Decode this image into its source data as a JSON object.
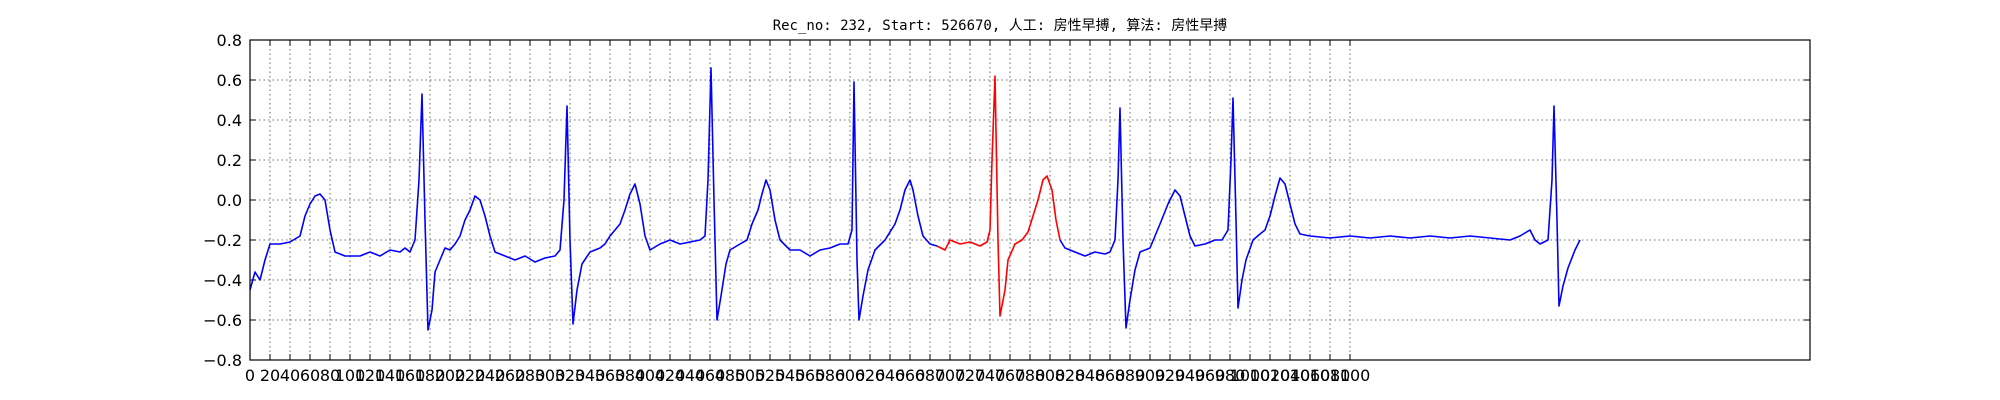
{
  "chart_data": {
    "type": "line",
    "title": "Rec_no: 232, Start: 526670, 人工: 房性早搏, 算法: 房性早搏",
    "xlabel": "",
    "ylabel": "",
    "xlim": [
      0,
      1560
    ],
    "ylim": [
      -0.8,
      0.8
    ],
    "grid": true,
    "yticks": [
      -0.8,
      -0.6,
      -0.4,
      -0.2,
      0.0,
      0.2,
      0.4,
      0.6,
      0.8
    ],
    "ytick_labels": [
      "−0.8",
      "−0.6",
      "−0.4",
      "−0.2",
      "0.0",
      "0.2",
      "0.4",
      "0.6",
      "0.8"
    ],
    "xtick_step": 20,
    "xtick_max": 1100,
    "series": [
      {
        "color": "#0000ff",
        "points": [
          [
            0,
            -0.45
          ],
          [
            5,
            -0.36
          ],
          [
            10,
            -0.4
          ],
          [
            15,
            -0.3
          ],
          [
            20,
            -0.22
          ],
          [
            30,
            -0.22
          ],
          [
            40,
            -0.21
          ],
          [
            50,
            -0.18
          ],
          [
            55,
            -0.08
          ],
          [
            60,
            -0.02
          ],
          [
            65,
            0.02
          ],
          [
            70,
            0.03
          ],
          [
            75,
            0.0
          ],
          [
            80,
            -0.15
          ],
          [
            85,
            -0.26
          ],
          [
            95,
            -0.28
          ],
          [
            110,
            -0.28
          ],
          [
            120,
            -0.26
          ],
          [
            130,
            -0.28
          ],
          [
            140,
            -0.25
          ],
          [
            150,
            -0.26
          ],
          [
            155,
            -0.24
          ],
          [
            160,
            -0.26
          ],
          [
            165,
            -0.2
          ],
          [
            169,
            0.1
          ],
          [
            172,
            0.53
          ],
          [
            175,
            -0.1
          ],
          [
            178,
            -0.65
          ],
          [
            182,
            -0.55
          ],
          [
            185,
            -0.36
          ],
          [
            190,
            -0.3
          ],
          [
            195,
            -0.24
          ],
          [
            200,
            -0.25
          ],
          [
            205,
            -0.22
          ],
          [
            210,
            -0.18
          ],
          [
            215,
            -0.1
          ],
          [
            220,
            -0.05
          ],
          [
            225,
            0.02
          ],
          [
            230,
            0.0
          ],
          [
            235,
            -0.08
          ],
          [
            240,
            -0.18
          ],
          [
            245,
            -0.26
          ],
          [
            255,
            -0.28
          ],
          [
            265,
            -0.3
          ],
          [
            275,
            -0.28
          ],
          [
            285,
            -0.31
          ],
          [
            295,
            -0.29
          ],
          [
            305,
            -0.28
          ],
          [
            310,
            -0.25
          ],
          [
            314,
            0.0
          ],
          [
            317,
            0.47
          ],
          [
            320,
            -0.2
          ],
          [
            323,
            -0.62
          ],
          [
            327,
            -0.45
          ],
          [
            332,
            -0.32
          ],
          [
            340,
            -0.26
          ],
          [
            350,
            -0.24
          ],
          [
            355,
            -0.22
          ],
          [
            360,
            -0.18
          ],
          [
            370,
            -0.12
          ],
          [
            375,
            -0.05
          ],
          [
            380,
            0.03
          ],
          [
            385,
            0.08
          ],
          [
            390,
            -0.02
          ],
          [
            395,
            -0.18
          ],
          [
            400,
            -0.25
          ],
          [
            410,
            -0.22
          ],
          [
            420,
            -0.2
          ],
          [
            430,
            -0.22
          ],
          [
            440,
            -0.21
          ],
          [
            450,
            -0.2
          ],
          [
            455,
            -0.18
          ],
          [
            458,
            0.1
          ],
          [
            461,
            0.66
          ],
          [
            464,
            0.0
          ],
          [
            467,
            -0.6
          ],
          [
            471,
            -0.48
          ],
          [
            476,
            -0.32
          ],
          [
            480,
            -0.25
          ],
          [
            490,
            -0.22
          ],
          [
            497,
            -0.2
          ],
          [
            502,
            -0.12
          ],
          [
            508,
            -0.05
          ],
          [
            512,
            0.03
          ],
          [
            516,
            0.1
          ],
          [
            520,
            0.05
          ],
          [
            525,
            -0.1
          ],
          [
            530,
            -0.2
          ],
          [
            540,
            -0.25
          ],
          [
            550,
            -0.25
          ],
          [
            560,
            -0.28
          ],
          [
            570,
            -0.25
          ],
          [
            580,
            -0.24
          ],
          [
            590,
            -0.22
          ],
          [
            598,
            -0.22
          ],
          [
            602,
            -0.15
          ],
          [
            604,
            0.59
          ],
          [
            607,
            -0.3
          ],
          [
            609,
            -0.6
          ],
          [
            613,
            -0.48
          ],
          [
            618,
            -0.35
          ],
          [
            625,
            -0.25
          ],
          [
            635,
            -0.2
          ],
          [
            645,
            -0.12
          ],
          [
            650,
            -0.05
          ],
          [
            655,
            0.05
          ],
          [
            660,
            0.1
          ],
          [
            663,
            0.05
          ],
          [
            668,
            -0.08
          ],
          [
            673,
            -0.18
          ],
          [
            680,
            -0.22
          ],
          [
            687,
            -0.23
          ]
        ]
      },
      {
        "color": "#ff0000",
        "points": [
          [
            687,
            -0.23
          ],
          [
            695,
            -0.25
          ],
          [
            700,
            -0.2
          ],
          [
            710,
            -0.22
          ],
          [
            720,
            -0.21
          ],
          [
            730,
            -0.23
          ],
          [
            737,
            -0.21
          ],
          [
            740,
            -0.15
          ],
          [
            742,
            0.2
          ],
          [
            745,
            0.62
          ],
          [
            748,
            -0.2
          ],
          [
            750,
            -0.58
          ],
          [
            755,
            -0.45
          ],
          [
            758,
            -0.3
          ],
          [
            765,
            -0.22
          ],
          [
            772,
            -0.2
          ],
          [
            778,
            -0.16
          ],
          [
            783,
            -0.08
          ],
          [
            788,
            0.0
          ],
          [
            793,
            0.1
          ],
          [
            797,
            0.12
          ],
          [
            802,
            0.05
          ],
          [
            806,
            -0.1
          ],
          [
            810,
            -0.2
          ]
        ]
      },
      {
        "color": "#0000ff",
        "points": [
          [
            810,
            -0.2
          ],
          [
            815,
            -0.24
          ],
          [
            825,
            -0.26
          ],
          [
            835,
            -0.28
          ],
          [
            845,
            -0.26
          ],
          [
            855,
            -0.27
          ],
          [
            860,
            -0.26
          ],
          [
            865,
            -0.2
          ],
          [
            868,
            0.1
          ],
          [
            870,
            0.46
          ],
          [
            873,
            -0.2
          ],
          [
            876,
            -0.64
          ],
          [
            880,
            -0.5
          ],
          [
            885,
            -0.35
          ],
          [
            890,
            -0.26
          ],
          [
            900,
            -0.24
          ],
          [
            905,
            -0.18
          ],
          [
            910,
            -0.12
          ],
          [
            918,
            -0.02
          ],
          [
            925,
            0.05
          ],
          [
            930,
            0.02
          ],
          [
            935,
            -0.08
          ],
          [
            940,
            -0.18
          ],
          [
            945,
            -0.23
          ],
          [
            955,
            -0.22
          ],
          [
            965,
            -0.2
          ],
          [
            972,
            -0.2
          ],
          [
            978,
            -0.15
          ],
          [
            981,
            0.2
          ],
          [
            983,
            0.51
          ],
          [
            986,
            -0.1
          ],
          [
            988,
            -0.54
          ],
          [
            992,
            -0.4
          ],
          [
            996,
            -0.3
          ],
          [
            1003,
            -0.2
          ],
          [
            1010,
            -0.17
          ],
          [
            1015,
            -0.15
          ],
          [
            1020,
            -0.08
          ],
          [
            1025,
            0.02
          ],
          [
            1030,
            0.11
          ],
          [
            1035,
            0.08
          ],
          [
            1040,
            -0.02
          ],
          [
            1045,
            -0.12
          ],
          [
            1050,
            -0.17
          ],
          [
            1060,
            -0.18
          ],
          [
            1080,
            -0.19
          ],
          [
            1100,
            -0.18
          ],
          [
            1120,
            -0.19
          ],
          [
            1140,
            -0.18
          ],
          [
            1160,
            -0.19
          ],
          [
            1180,
            -0.18
          ],
          [
            1200,
            -0.19
          ],
          [
            1220,
            -0.18
          ],
          [
            1240,
            -0.19
          ],
          [
            1260,
            -0.2
          ],
          [
            1270,
            -0.18
          ],
          [
            1280,
            -0.15
          ],
          [
            1285,
            -0.2
          ],
          [
            1290,
            -0.22
          ],
          [
            1298,
            -0.2
          ],
          [
            1302,
            0.1
          ],
          [
            1304,
            0.47
          ],
          [
            1307,
            -0.1
          ],
          [
            1309,
            -0.53
          ],
          [
            1313,
            -0.43
          ],
          [
            1318,
            -0.34
          ],
          [
            1325,
            -0.25
          ],
          [
            1330,
            -0.2
          ]
        ]
      }
    ]
  }
}
